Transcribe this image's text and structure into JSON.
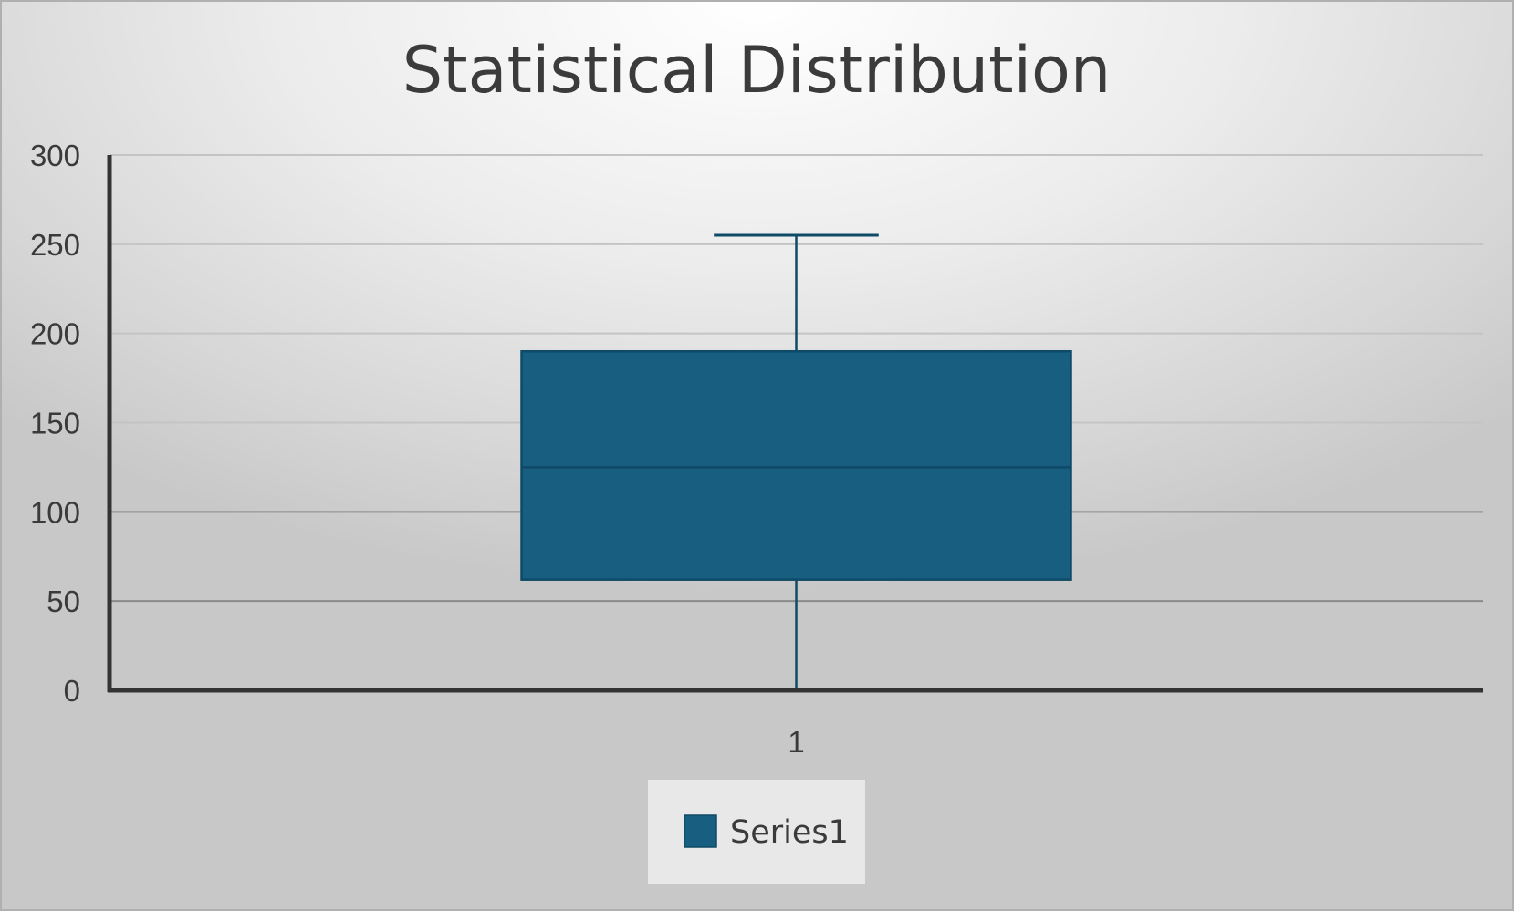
{
  "chart_data": {
    "type": "boxplot",
    "title": "Statistical Distribution",
    "xlabel": "",
    "ylabel": "",
    "ylim": [
      0,
      300
    ],
    "yticks": [
      0,
      50,
      100,
      150,
      200,
      250,
      300
    ],
    "categories": [
      "1"
    ],
    "grid": true,
    "legend_position": "bottom",
    "series": [
      {
        "name": "Series1",
        "color": "#175e80",
        "boxes": [
          {
            "category": "1",
            "min": 0,
            "q1": 62,
            "median": 125,
            "q3": 190,
            "max": 255
          }
        ]
      }
    ]
  }
}
